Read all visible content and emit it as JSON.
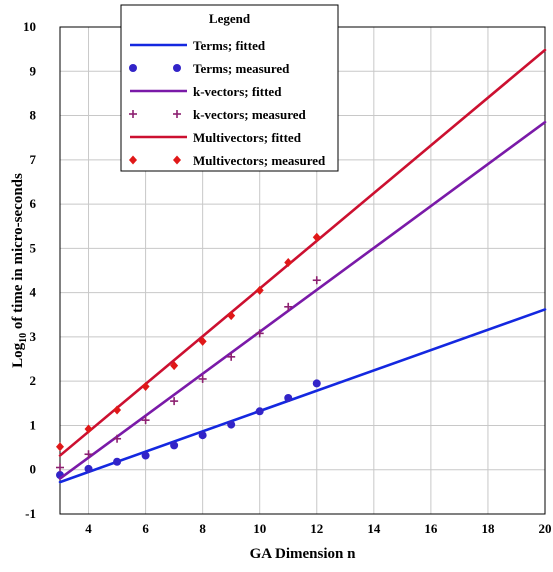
{
  "chart_data": {
    "type": "scatter",
    "xlabel": "GA Dimension n",
    "ylabel_prefix": "Log",
    "ylabel_sub": "10",
    "ylabel_suffix": " of time in micro-seconds",
    "xlim": [
      3,
      20
    ],
    "ylim": [
      -1,
      10
    ],
    "xticks": [
      4,
      6,
      8,
      10,
      12,
      14,
      16,
      18,
      20
    ],
    "yticks": [
      -1,
      0,
      1,
      2,
      3,
      4,
      5,
      6,
      7,
      8,
      9,
      10
    ],
    "grid": true,
    "legend": {
      "title": "Legend",
      "placement": "top-center"
    },
    "series": [
      {
        "name": "Terms; fitted",
        "kind": "line",
        "color": "#1428e0",
        "x": [
          3,
          20
        ],
        "y": [
          -0.28,
          3.62
        ]
      },
      {
        "name": "Terms; measured",
        "kind": "points",
        "marker": "circle",
        "color": "#3224c8",
        "x": [
          3,
          4,
          5,
          6,
          7,
          8,
          9,
          10,
          11,
          12
        ],
        "y": [
          -0.12,
          0.02,
          0.18,
          0.32,
          0.55,
          0.78,
          1.02,
          1.32,
          1.62,
          1.95
        ]
      },
      {
        "name": "k-vectors; fitted",
        "kind": "line",
        "color": "#7a1aa8",
        "x": [
          3,
          20
        ],
        "y": [
          -0.2,
          7.85
        ]
      },
      {
        "name": "k-vectors; measured",
        "kind": "points",
        "marker": "plus",
        "color": "#8c2070",
        "x": [
          3,
          4,
          5,
          6,
          7,
          8,
          9,
          10,
          11,
          12
        ],
        "y": [
          0.05,
          0.35,
          0.7,
          1.12,
          1.55,
          2.05,
          2.55,
          3.08,
          3.68,
          4.28
        ]
      },
      {
        "name": "Multivectors; fitted",
        "kind": "line",
        "color": "#cc1030",
        "x": [
          3,
          20
        ],
        "y": [
          0.32,
          9.48
        ]
      },
      {
        "name": "Multivectors; measured",
        "kind": "points",
        "marker": "diamond",
        "color": "#e01818",
        "x": [
          3,
          4,
          5,
          6,
          7,
          8,
          9,
          10,
          11,
          12
        ],
        "y": [
          0.52,
          0.92,
          1.35,
          1.88,
          2.35,
          2.9,
          3.48,
          4.05,
          4.68,
          5.25
        ]
      }
    ]
  }
}
